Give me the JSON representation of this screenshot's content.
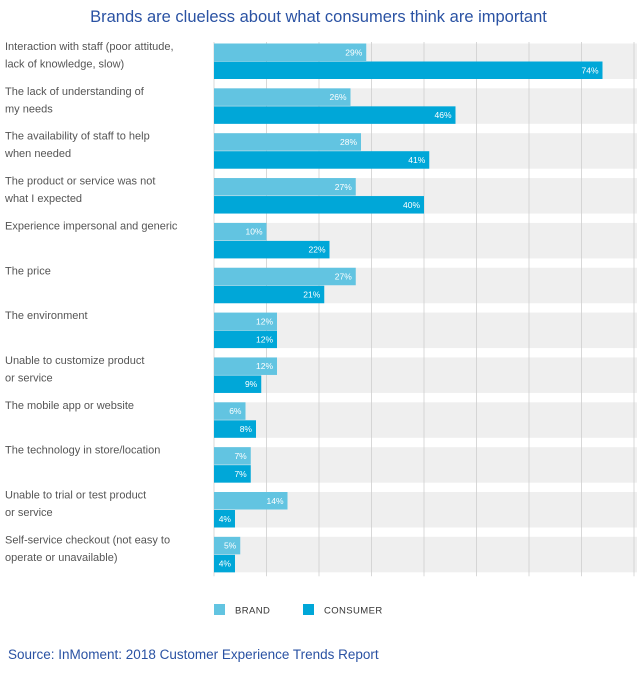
{
  "chart_data": {
    "type": "bar",
    "orientation": "horizontal",
    "title": "Brands are clueless about what consumers think are important",
    "xlim": [
      0,
      80
    ],
    "categories": [
      [
        "Interaction with staff (poor attitude,",
        "lack of knowledge, slow)"
      ],
      [
        "The lack of understanding of",
        "my needs"
      ],
      [
        "The availability of staff to help",
        "when needed"
      ],
      [
        "The product or service was not",
        "what I expected"
      ],
      [
        "Experience impersonal and generic"
      ],
      [
        "The price"
      ],
      [
        "The environment"
      ],
      [
        "Unable to customize product",
        "or service"
      ],
      [
        "The mobile app or website"
      ],
      [
        "The technology in store/location"
      ],
      [
        "Unable to trial or test product",
        "or service"
      ],
      [
        "Self-service checkout (not easy to",
        "operate or unavailable)"
      ]
    ],
    "series": [
      {
        "name": "BRAND",
        "color": "#62c4e1",
        "values": [
          29,
          26,
          28,
          27,
          10,
          27,
          12,
          12,
          6,
          7,
          14,
          5
        ]
      },
      {
        "name": "CONSUMER",
        "color": "#00a7d8",
        "values": [
          74,
          46,
          41,
          40,
          22,
          21,
          12,
          9,
          8,
          7,
          4,
          4
        ]
      }
    ],
    "value_suffix": "%",
    "legend": "bottom-center",
    "grid": true
  },
  "source": "Source: InMoment: 2018 Customer Experience Trends Report"
}
